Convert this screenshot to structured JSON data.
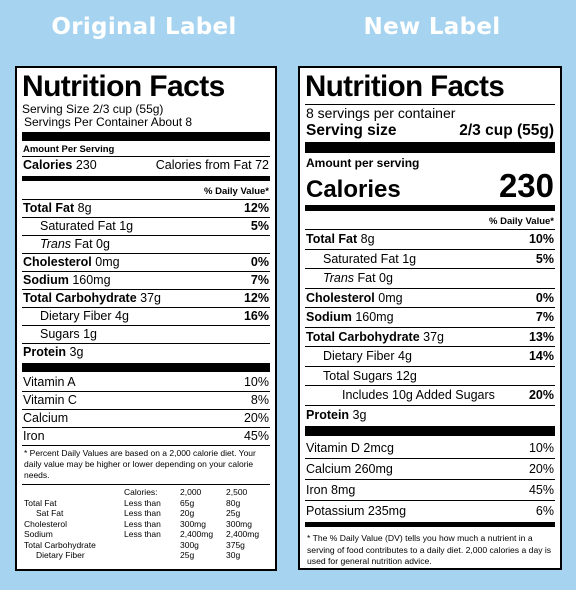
{
  "headings": {
    "original": "Original Label",
    "new": "New Label"
  },
  "original": {
    "title": "Nutrition Facts",
    "serving_size": "Serving Size 2/3 cup (55g)",
    "servings_per_container": "Servings Per Container About 8",
    "amount_per_serving": "Amount Per Serving",
    "calories_label": "Calories",
    "calories_value": "230",
    "calories_from_fat": "Calories from Fat 72",
    "dv_header": "% Daily Value*",
    "nutrients": [
      {
        "name": "Total Fat",
        "amount": " 8g",
        "dv": "12%",
        "bold": true,
        "indent": 0
      },
      {
        "name": "Saturated Fat",
        "amount": " 1g",
        "dv": "5%",
        "bold": false,
        "indent": 1
      },
      {
        "name": "Trans",
        "amount": " Fat 0g",
        "dv": "",
        "bold": false,
        "indent": 1,
        "italic": true
      },
      {
        "name": "Cholesterol",
        "amount": " 0mg",
        "dv": "0%",
        "bold": true,
        "indent": 0
      },
      {
        "name": "Sodium",
        "amount": " 160mg",
        "dv": "7%",
        "bold": true,
        "indent": 0
      },
      {
        "name": "Total Carbohydrate",
        "amount": " 37g",
        "dv": "12%",
        "bold": true,
        "indent": 0
      },
      {
        "name": "Dietary Fiber",
        "amount": " 4g",
        "dv": "16%",
        "bold": false,
        "indent": 1
      },
      {
        "name": "Sugars",
        "amount": " 1g",
        "dv": "",
        "bold": false,
        "indent": 1
      },
      {
        "name": "Protein",
        "amount": " 3g",
        "dv": "",
        "bold": true,
        "indent": 0
      }
    ],
    "vitamins": [
      {
        "name": "Vitamin A",
        "dv": "10%"
      },
      {
        "name": "Vitamin C",
        "dv": "8%"
      },
      {
        "name": "Calcium",
        "dv": "20%"
      },
      {
        "name": "Iron",
        "dv": "45%"
      }
    ],
    "footnote": "* Percent Daily Values are based on a 2,000 calorie diet. Your daily value may be higher or lower depending on your calorie needs.",
    "footer_table": {
      "header": [
        "",
        "Calories:",
        "2,000",
        "2,500"
      ],
      "rows": [
        [
          "Total Fat",
          "Less than",
          "65g",
          "80g"
        ],
        [
          "Sat Fat",
          "Less than",
          "20g",
          "25g"
        ],
        [
          "Cholesterol",
          "Less than",
          "300mg",
          "300mg"
        ],
        [
          "Sodium",
          "Less than",
          "2,400mg",
          "2,400mg"
        ],
        [
          "Total Carbohydrate",
          "",
          "300g",
          "375g"
        ],
        [
          "Dietary Fiber",
          "",
          "25g",
          "30g"
        ]
      ]
    }
  },
  "new": {
    "title": "Nutrition Facts",
    "servings_per_container": "8 servings per container",
    "serving_size_label": "Serving size",
    "serving_size_value": "2/3 cup (55g)",
    "amount_per_serving": "Amount per serving",
    "calories_label": "Calories",
    "calories_value": "230",
    "dv_header": "% Daily Value*",
    "nutrients": [
      {
        "name": "Total Fat",
        "amount": " 8g",
        "dv": "10%",
        "bold": true,
        "indent": 0
      },
      {
        "name": "Saturated Fat",
        "amount": " 1g",
        "dv": "5%",
        "bold": false,
        "indent": 1
      },
      {
        "name": "Trans",
        "amount": " Fat 0g",
        "dv": "",
        "bold": false,
        "indent": 1,
        "italic": true
      },
      {
        "name": "Cholesterol",
        "amount": " 0mg",
        "dv": "0%",
        "bold": true,
        "indent": 0
      },
      {
        "name": "Sodium",
        "amount": " 160mg",
        "dv": "7%",
        "bold": true,
        "indent": 0
      },
      {
        "name": "Total Carbohydrate",
        "amount": " 37g",
        "dv": "13%",
        "bold": true,
        "indent": 0
      },
      {
        "name": "Dietary Fiber",
        "amount": " 4g",
        "dv": "14%",
        "bold": false,
        "indent": 1
      },
      {
        "name": "Total Sugars",
        "amount": " 12g",
        "dv": "",
        "bold": false,
        "indent": 1
      },
      {
        "name": "Includes 10g Added Sugars",
        "amount": "",
        "dv": "20%",
        "bold": false,
        "indent": 2
      },
      {
        "name": "Protein",
        "amount": " 3g",
        "dv": "",
        "bold": true,
        "indent": 0
      }
    ],
    "vitamins": [
      {
        "name": "Vitamin D 2mcg",
        "dv": "10%"
      },
      {
        "name": "Calcium 260mg",
        "dv": "20%"
      },
      {
        "name": "Iron 8mg",
        "dv": "45%"
      },
      {
        "name": "Potassium 235mg",
        "dv": "6%"
      }
    ],
    "footnote": "* The % Daily Value (DV) tells you how much a nutrient in a serving of food contributes to a daily diet. 2,000 calories a day is used for general nutrition advice."
  },
  "colors": {
    "background": "#a6d4f0",
    "heading_text": "#ffffff",
    "label_bg": "#ffffff",
    "ink": "#000000"
  }
}
